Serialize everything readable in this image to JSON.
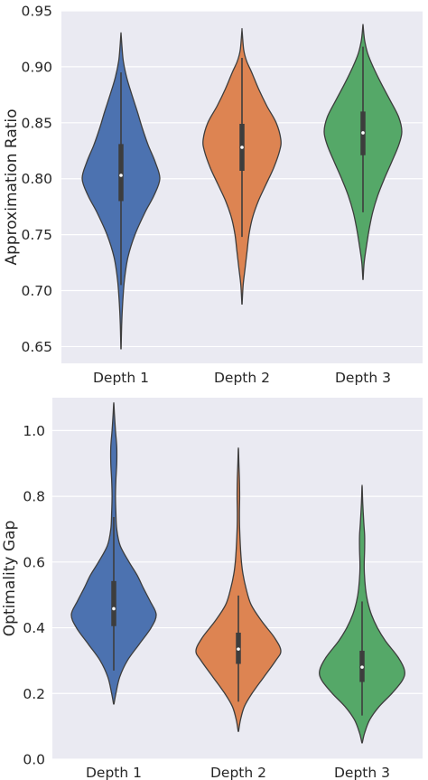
{
  "chart_data": [
    {
      "type": "violin",
      "title": "",
      "xlabel": "",
      "ylabel": "Approximation Ratio",
      "ylim": [
        0.635,
        0.95
      ],
      "yticks": [
        0.65,
        0.7,
        0.75,
        0.8,
        0.85,
        0.9,
        0.95
      ],
      "ytick_labels": [
        "0.65",
        "0.70",
        "0.75",
        "0.80",
        "0.85",
        "0.90",
        "0.95"
      ],
      "grid": true,
      "categories": [
        "Depth 1",
        "Depth 2",
        "Depth 3"
      ],
      "colors": [
        "#4c72b0",
        "#dd8452",
        "#55a868"
      ],
      "series": [
        {
          "category": "Depth 1",
          "min": 0.648,
          "q1": 0.78,
          "median": 0.803,
          "q3": 0.831,
          "max": 0.929,
          "whisker_low": 0.705,
          "whisker_high": 0.895,
          "density": [
            [
              0.648,
              0.003
            ],
            [
              0.67,
              0.018
            ],
            [
              0.69,
              0.045
            ],
            [
              0.71,
              0.09
            ],
            [
              0.73,
              0.18
            ],
            [
              0.75,
              0.36
            ],
            [
              0.77,
              0.62
            ],
            [
              0.785,
              0.85
            ],
            [
              0.8,
              1.0
            ],
            [
              0.815,
              0.88
            ],
            [
              0.83,
              0.7
            ],
            [
              0.845,
              0.55
            ],
            [
              0.86,
              0.42
            ],
            [
              0.875,
              0.28
            ],
            [
              0.89,
              0.15
            ],
            [
              0.905,
              0.06
            ],
            [
              0.918,
              0.025
            ],
            [
              0.929,
              0.003
            ]
          ]
        },
        {
          "category": "Depth 2",
          "min": 0.688,
          "q1": 0.807,
          "median": 0.828,
          "q3": 0.849,
          "max": 0.932,
          "whisker_low": 0.748,
          "whisker_high": 0.908,
          "density": [
            [
              0.688,
              0.003
            ],
            [
              0.705,
              0.03
            ],
            [
              0.72,
              0.08
            ],
            [
              0.735,
              0.13
            ],
            [
              0.75,
              0.18
            ],
            [
              0.765,
              0.27
            ],
            [
              0.78,
              0.42
            ],
            [
              0.795,
              0.62
            ],
            [
              0.81,
              0.82
            ],
            [
              0.825,
              0.97
            ],
            [
              0.835,
              1.0
            ],
            [
              0.85,
              0.88
            ],
            [
              0.865,
              0.64
            ],
            [
              0.88,
              0.43
            ],
            [
              0.895,
              0.25
            ],
            [
              0.905,
              0.12
            ],
            [
              0.915,
              0.045
            ],
            [
              0.932,
              0.003
            ]
          ]
        },
        {
          "category": "Depth 3",
          "min": 0.71,
          "q1": 0.821,
          "median": 0.841,
          "q3": 0.86,
          "max": 0.937,
          "whisker_low": 0.77,
          "whisker_high": 0.918,
          "density": [
            [
              0.71,
              0.003
            ],
            [
              0.725,
              0.03
            ],
            [
              0.74,
              0.09
            ],
            [
              0.755,
              0.16
            ],
            [
              0.77,
              0.25
            ],
            [
              0.785,
              0.38
            ],
            [
              0.8,
              0.55
            ],
            [
              0.815,
              0.74
            ],
            [
              0.83,
              0.92
            ],
            [
              0.842,
              1.0
            ],
            [
              0.855,
              0.92
            ],
            [
              0.87,
              0.7
            ],
            [
              0.885,
              0.47
            ],
            [
              0.9,
              0.26
            ],
            [
              0.912,
              0.12
            ],
            [
              0.922,
              0.05
            ],
            [
              0.93,
              0.02
            ],
            [
              0.937,
              0.003
            ]
          ]
        }
      ]
    },
    {
      "type": "violin",
      "title": "",
      "xlabel": "",
      "ylabel": "Optimality Gap",
      "ylim": [
        0.0,
        1.1
      ],
      "yticks": [
        0.0,
        0.2,
        0.4,
        0.6,
        0.8,
        1.0
      ],
      "ytick_labels": [
        "0.0",
        "0.2",
        "0.4",
        "0.6",
        "0.8",
        "1.0"
      ],
      "grid": true,
      "categories": [
        "Depth 1",
        "Depth 2",
        "Depth 3"
      ],
      "colors": [
        "#4c72b0",
        "#dd8452",
        "#55a868"
      ],
      "series": [
        {
          "category": "Depth 1",
          "min": 0.168,
          "q1": 0.405,
          "median": 0.458,
          "q3": 0.542,
          "max": 1.081,
          "whisker_low": 0.27,
          "whisker_high": 0.737,
          "density": [
            [
              0.168,
              0.005
            ],
            [
              0.2,
              0.05
            ],
            [
              0.25,
              0.14
            ],
            [
              0.3,
              0.32
            ],
            [
              0.35,
              0.6
            ],
            [
              0.4,
              0.88
            ],
            [
              0.44,
              1.0
            ],
            [
              0.48,
              0.86
            ],
            [
              0.52,
              0.7
            ],
            [
              0.56,
              0.55
            ],
            [
              0.6,
              0.36
            ],
            [
              0.65,
              0.15
            ],
            [
              0.7,
              0.07
            ],
            [
              0.75,
              0.05
            ],
            [
              0.8,
              0.04
            ],
            [
              0.85,
              0.05
            ],
            [
              0.9,
              0.07
            ],
            [
              0.95,
              0.07
            ],
            [
              1.0,
              0.04
            ],
            [
              1.05,
              0.015
            ],
            [
              1.081,
              0.003
            ]
          ]
        },
        {
          "category": "Depth 2",
          "min": 0.085,
          "q1": 0.29,
          "median": 0.335,
          "q3": 0.385,
          "max": 0.942,
          "whisker_low": 0.175,
          "whisker_high": 0.498,
          "density": [
            [
              0.085,
              0.005
            ],
            [
              0.12,
              0.05
            ],
            [
              0.16,
              0.14
            ],
            [
              0.2,
              0.32
            ],
            [
              0.25,
              0.6
            ],
            [
              0.3,
              0.88
            ],
            [
              0.33,
              1.0
            ],
            [
              0.37,
              0.85
            ],
            [
              0.42,
              0.55
            ],
            [
              0.47,
              0.3
            ],
            [
              0.52,
              0.18
            ],
            [
              0.57,
              0.1
            ],
            [
              0.62,
              0.06
            ],
            [
              0.7,
              0.03
            ],
            [
              0.75,
              0.025
            ],
            [
              0.8,
              0.03
            ],
            [
              0.85,
              0.025
            ],
            [
              0.9,
              0.012
            ],
            [
              0.942,
              0.003
            ]
          ]
        },
        {
          "category": "Depth 3",
          "min": 0.05,
          "q1": 0.235,
          "median": 0.28,
          "q3": 0.33,
          "max": 0.828,
          "whisker_low": 0.133,
          "whisker_high": 0.48,
          "density": [
            [
              0.05,
              0.005
            ],
            [
              0.08,
              0.06
            ],
            [
              0.12,
              0.18
            ],
            [
              0.16,
              0.4
            ],
            [
              0.2,
              0.7
            ],
            [
              0.24,
              0.95
            ],
            [
              0.27,
              1.0
            ],
            [
              0.31,
              0.85
            ],
            [
              0.36,
              0.55
            ],
            [
              0.4,
              0.36
            ],
            [
              0.44,
              0.22
            ],
            [
              0.48,
              0.13
            ],
            [
              0.52,
              0.08
            ],
            [
              0.58,
              0.05
            ],
            [
              0.64,
              0.06
            ],
            [
              0.68,
              0.06
            ],
            [
              0.72,
              0.04
            ],
            [
              0.78,
              0.015
            ],
            [
              0.828,
              0.003
            ]
          ]
        }
      ]
    }
  ]
}
